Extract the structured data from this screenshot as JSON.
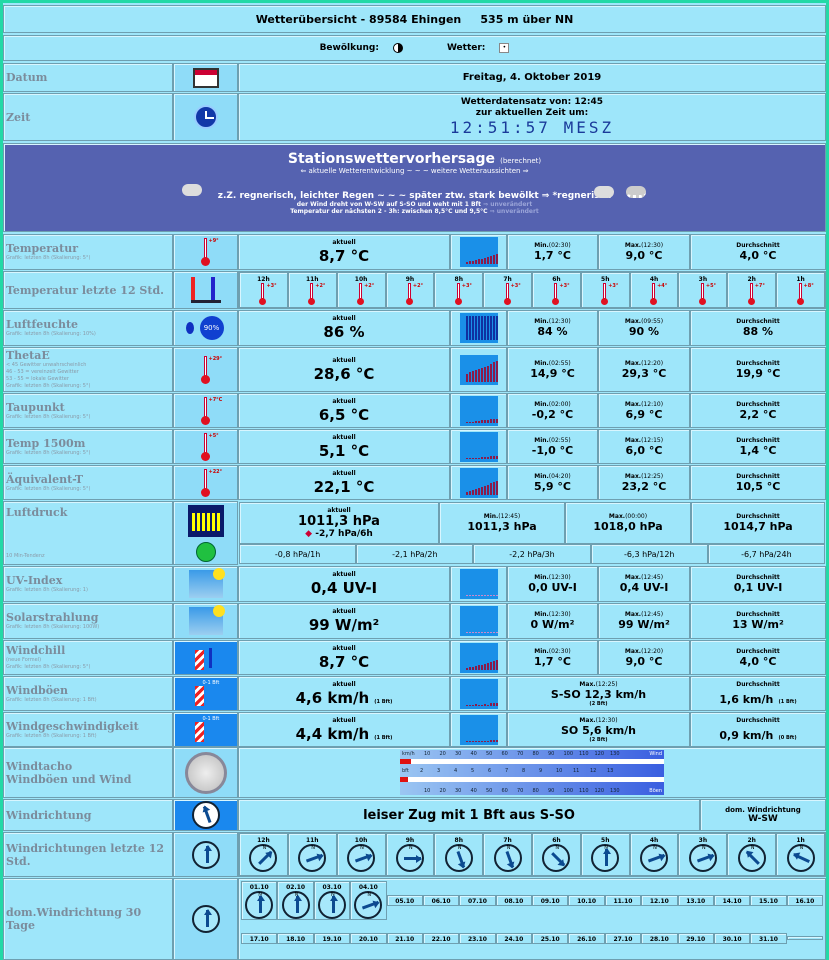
{
  "header": {
    "title": "Wetterübersicht - 89584 Ehingen     535 m über NN"
  },
  "sky": {
    "clouds_label": "Bewölkung:",
    "weather_label": "Wetter:"
  },
  "date": {
    "label": "Datum",
    "value": "Freitag, 4. Oktober 2019"
  },
  "time": {
    "label": "Zeit",
    "line1": "Wetterdatensatz von: 12:45",
    "line2": "zur aktuellen Zeit um:",
    "clock": "12:51:57 MESZ"
  },
  "forecast": {
    "title": "Stationswettervorhersage",
    "title_note": "(berechnet)",
    "sub": "⇐ aktuelle Wetterentwicklung ~ ~ ~ weitere Wetteraussichten ⇒",
    "main": "z.Z. regnerisch, leichter Regen ~ ~ ~ später ztw. stark bewölkt ⇒ *regnerisch",
    "wind": "der Wind dreht von W-SW auf S-SO und weht mit 1 Bft",
    "wind_trend": "⇒ unverändert",
    "temp": "Temperatur der nächsten 2 - 3h: zwischen 8,5°C und 9,5°C",
    "temp_trend": "⇒ unverändert"
  },
  "common": {
    "current": "aktuell",
    "min": "Min.",
    "max": "Max.",
    "avg": "Durchschnitt"
  },
  "measures": [
    {
      "id": "temperatur",
      "label": "Temperatur",
      "sub": [
        "Grafik: letzten 8h (Skalierung: 5°)"
      ],
      "icon": "thermometer-icon",
      "icon_text": "+9°",
      "current": "8,7 °C",
      "min_time": "(02:30)",
      "min": "1,7 °C",
      "max_time": "(12:30)",
      "max": "9,0 °C",
      "avg": "4,0 °C"
    },
    {
      "id": "temp12",
      "label": "Temperatur letzte 12 Std.",
      "sub": []
    },
    {
      "id": "luftfeuchte",
      "label": "Luftfeuchte",
      "sub": [
        "Grafik: letzten 8h (Skalierung: 10%)"
      ],
      "icon": "humidity-icon",
      "icon_text": "90%",
      "current": "86 %",
      "min_time": "(12:30)",
      "min": "84 %",
      "max_time": "(09:55)",
      "max": "90 %",
      "avg": "88 %"
    },
    {
      "id": "thetae",
      "label": "ThetaE",
      "sub": [
        "< 45 Gewitter unwahrscheinlich",
        "46 - 53 = vereinzelt Gewitter",
        "53 - 55 = lokale Gewitter",
        "Grafik: letzten 8h (Skalierung: 5°)"
      ],
      "icon": "thermometer-icon",
      "icon_text": "+29°",
      "current": "28,6 °C",
      "min_time": "(02:55)",
      "min": "14,9 °C",
      "max_time": "(12:20)",
      "max": "29,3 °C",
      "avg": "19,9 °C"
    },
    {
      "id": "taupunkt",
      "label": "Taupunkt",
      "sub": [
        "Grafik: letzten 8h (Skalierung: 5°)"
      ],
      "icon": "dewpoint-icon",
      "icon_text": "+7°C",
      "current": "6,5 °C",
      "min_time": "(02:00)",
      "min": "-0,2 °C",
      "max_time": "(12:10)",
      "max": "6,9 °C",
      "avg": "2,2 °C"
    },
    {
      "id": "temp1500",
      "label": "Temp 1500m",
      "sub": [
        "Grafik: letzten 8h (Skalierung: 5°)"
      ],
      "icon": "thermometer-icon",
      "icon_text": "+5°",
      "current": "5,1 °C",
      "min_time": "(02:55)",
      "min": "-1,0 °C",
      "max_time": "(12:15)",
      "max": "6,0 °C",
      "avg": "1,4 °C"
    },
    {
      "id": "aequivalent",
      "label": "Äquivalent-T",
      "sub": [
        "Grafik: letzten 8h (Skalierung: 5°)"
      ],
      "icon": "thermometer-icon",
      "icon_text": "+22°",
      "current": "22,1 °C",
      "min_time": "(04:20)",
      "min": "5,9 °C",
      "max_time": "(12:25)",
      "max": "23,2 °C",
      "avg": "10,5 °C"
    },
    {
      "id": "luftdruck",
      "label": "Luftdruck",
      "sub": []
    },
    {
      "id": "uv",
      "label": "UV-Index",
      "sub": [
        "Grafik: letzten 8h (Skalierung: 1)"
      ],
      "icon": "uv-sun-icon",
      "current": "0,4 UV-I",
      "min_time": "(12:30)",
      "min": "0,0 UV-I",
      "max_time": "(12:45)",
      "max": "0,4 UV-I",
      "avg": "0,1 UV-I"
    },
    {
      "id": "solar",
      "label": "Solarstrahlung",
      "sub": [
        "Grafik: letzten 8h (Skalierung: 100W)"
      ],
      "icon": "solar-icon",
      "current": "99 W/m²",
      "min_time": "(12:30)",
      "min": "0 W/m²",
      "max_time": "(12:45)",
      "max": "99 W/m²",
      "avg": "13 W/m²"
    },
    {
      "id": "windchill",
      "label": "Windchill",
      "sub": [
        "(neue Formel)",
        "Grafik: letzten 8h (Skalierung: 5°)"
      ],
      "icon": "windsock-thermometer-icon",
      "current": "8,7 °C",
      "min_time": "(02:30)",
      "min": "1,7 °C",
      "max_time": "(12:20)",
      "max": "9,0 °C",
      "avg": "4,0 °C"
    },
    {
      "id": "windboeen",
      "label": "Windböen",
      "sub": [
        "Grafik: letzten 8h (Skalierung: 1 Bft)"
      ],
      "icon": "windsock-icon",
      "icon_text": "0-1 Bft",
      "current": "4,6 km/h",
      "current_bft": "(1 Bft)",
      "max_time": "(12:25)",
      "max": "S-SO 12,3 km/h",
      "max_bft": "(2 Bft)",
      "avg": "1,6 km/h",
      "avg_bft": "(1 Bft)"
    },
    {
      "id": "windgeschw",
      "label": "Windgeschwindigkeit",
      "sub": [
        "Grafik: letzten 8h (Skalierung: 1 Bft)"
      ],
      "icon": "windsock-icon",
      "icon_text": "0-1 Bft",
      "current": "4,4 km/h",
      "current_bft": "(1 Bft)",
      "max_time": "(12:30)",
      "max": "SO 5,6 km/h",
      "max_bft": "(2 Bft)",
      "avg": "0,9 km/h",
      "avg_bft": "(0 Bft)"
    }
  ],
  "temp12": {
    "hours": [
      "12h",
      "11h",
      "10h",
      "9h",
      "8h",
      "7h",
      "6h",
      "5h",
      "4h",
      "3h",
      "2h",
      "1h"
    ],
    "values": [
      "+3°",
      "+2°",
      "+2°",
      "+2°",
      "+3°",
      "+3°",
      "+3°",
      "+3°",
      "+4°",
      "+5°",
      "+7°",
      "+8°"
    ]
  },
  "pressure": {
    "label": "Luftdruck",
    "tendency_label": "10 Min-Tendenz",
    "current": "1011,3 hPa",
    "trend": "-2,7 hPa/6h",
    "min_time": "(12:45)",
    "min": "1011,3 hPa",
    "max_time": "(00:00)",
    "max": "1018,0 hPa",
    "avg": "1014,7 hPa",
    "changes": [
      "-0,8 hPa/1h",
      "-2,1 hPa/2h",
      "-2,2 hPa/3h",
      "-6,3 hPa/12h",
      "-6,7 hPa/24h"
    ]
  },
  "windtacho": {
    "label1": "Windtacho",
    "label2": "Windböen und Wind",
    "kmh_label": "km/h",
    "bft_label": "bft",
    "wind_label": "Wind",
    "boeen_label": "Böen",
    "kmh_ticks": [
      "10",
      "20",
      "30",
      "40",
      "50",
      "60",
      "70",
      "80",
      "90",
      "100",
      "110",
      "120",
      "130"
    ],
    "bft_ticks": [
      "2",
      "3",
      "4",
      "5",
      "6",
      "7",
      "8",
      "9",
      "10",
      "11",
      "12",
      "13"
    ],
    "gust_fraction": 0.03,
    "wind_fraction": 0.04
  },
  "winddir": {
    "label": "Windrichtung",
    "text": "leiser Zug mit 1 Bft aus S-SO",
    "dom_label": "dom. Windrichtung",
    "dom_value": "W-SW"
  },
  "winddir12": {
    "label": "Windrichtungen letzte 12 Std.",
    "hours": [
      "12h",
      "11h",
      "10h",
      "9h",
      "8h",
      "7h",
      "6h",
      "5h",
      "4h",
      "3h",
      "2h",
      "1h"
    ],
    "arrow_deg": [
      225,
      250,
      250,
      270,
      340,
      340,
      315,
      180,
      250,
      250,
      135,
      115
    ]
  },
  "winddir30": {
    "label": "dom.Windrichtung 30 Tage",
    "days": [
      "01.10",
      "02.10",
      "03.10",
      "04.10",
      "05.10",
      "06.10",
      "07.10",
      "08.10",
      "09.10",
      "10.10",
      "11.10",
      "12.10",
      "13.10",
      "14.10",
      "15.10",
      "16.10",
      "17.10",
      "18.10",
      "19.10",
      "20.10",
      "21.10",
      "22.10",
      "23.10",
      "24.10",
      "25.10",
      "26.10",
      "27.10",
      "28.10",
      "29.10",
      "30.10",
      "31.10",
      ""
    ],
    "arrow_deg": [
      180,
      180,
      180,
      250
    ]
  },
  "compass_letters": {
    "n": "N",
    "s": "S",
    "w": "W",
    "e": "E"
  },
  "colors": {
    "frame": "#22d9a6",
    "background": "#9ee6fa",
    "forecast_bg": "#5562b0",
    "label_text": "#7b8c9c",
    "clock": "#1a3a9a"
  }
}
